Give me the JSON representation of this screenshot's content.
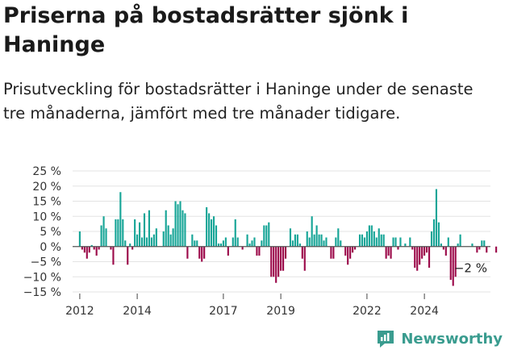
{
  "header": {
    "title": "Priserna på bostadsrätter sjönk i Haninge",
    "subtitle": "Prisutveckling för bostadsrätter i Haninge under de senaste tre månaderna, jämfört med tre månader tidigare."
  },
  "brand": {
    "name": "Newsworthy",
    "color": "#3a9c8f"
  },
  "chart_data": {
    "type": "bar",
    "title": "Priserna på bostadsrätter sjönk i Haninge",
    "xlabel": "",
    "ylabel": "",
    "ylim": [
      -15,
      25
    ],
    "yticks": [
      25,
      20,
      15,
      10,
      5,
      0,
      -5,
      -10,
      -15
    ],
    "ytick_labels": [
      "25 %",
      "20 %",
      "15 %",
      "10 %",
      "5 %",
      "0 %",
      "−5 %",
      "−10 %",
      "−15 %"
    ],
    "xticks": [
      {
        "label": "2012",
        "x": 2012.0
      },
      {
        "label": "2014",
        "x": 2014.0
      },
      {
        "label": "2017",
        "x": 2017.0
      },
      {
        "label": "2019",
        "x": 2019.0
      },
      {
        "label": "2022",
        "x": 2022.0
      },
      {
        "label": "2024",
        "x": 2024.0
      }
    ],
    "xlim": [
      2011.75,
      2026.3
    ],
    "start": 2012.0,
    "step": 0.0833333,
    "colors": {
      "positive": "#17a597",
      "negative": "#9c0a4a",
      "grid": "#e3e3e3",
      "zero": "#555555"
    },
    "end_label": "−2 %",
    "values": [
      5,
      -1,
      -2,
      -4,
      -2,
      0.5,
      -1,
      -3,
      -1,
      7,
      10,
      6,
      0,
      -1,
      -6,
      9,
      9,
      18,
      9,
      2,
      -6,
      1,
      -1,
      9,
      4,
      8,
      3,
      11,
      3,
      12,
      3,
      4,
      6,
      0,
      0,
      5,
      12,
      7,
      4,
      6,
      15,
      14,
      15,
      12,
      11,
      -4,
      0,
      4,
      2,
      2,
      -4,
      -5,
      -4,
      13,
      11,
      9,
      10,
      7,
      1,
      1,
      2,
      3,
      -3,
      0,
      3,
      9,
      3,
      0,
      -1,
      0,
      4,
      1,
      2,
      3,
      -3,
      -3,
      2,
      7,
      7,
      8,
      -10,
      -10,
      -12,
      -10,
      -8,
      -8,
      -4,
      0,
      6,
      2,
      4,
      4,
      1,
      -4,
      -8,
      5,
      3,
      10,
      4,
      7,
      4,
      4,
      2,
      3,
      0,
      -4,
      -4,
      3,
      6,
      2,
      0,
      -3,
      -6,
      -4,
      -2,
      -1,
      0,
      4,
      4,
      3,
      5,
      7,
      7,
      5,
      3,
      6,
      4,
      4,
      -4,
      -3,
      -4,
      3,
      3,
      -1,
      3,
      0,
      1,
      0,
      3,
      -1,
      -7,
      -8,
      -6,
      -4,
      -3,
      -2,
      -7,
      5,
      9,
      19,
      8,
      1,
      -1,
      -3,
      3,
      -11,
      -13,
      -10,
      1,
      4,
      0,
      0,
      0,
      0,
      1,
      0,
      -2,
      -1,
      2,
      2,
      -2,
      0,
      0,
      0,
      -2
    ]
  }
}
